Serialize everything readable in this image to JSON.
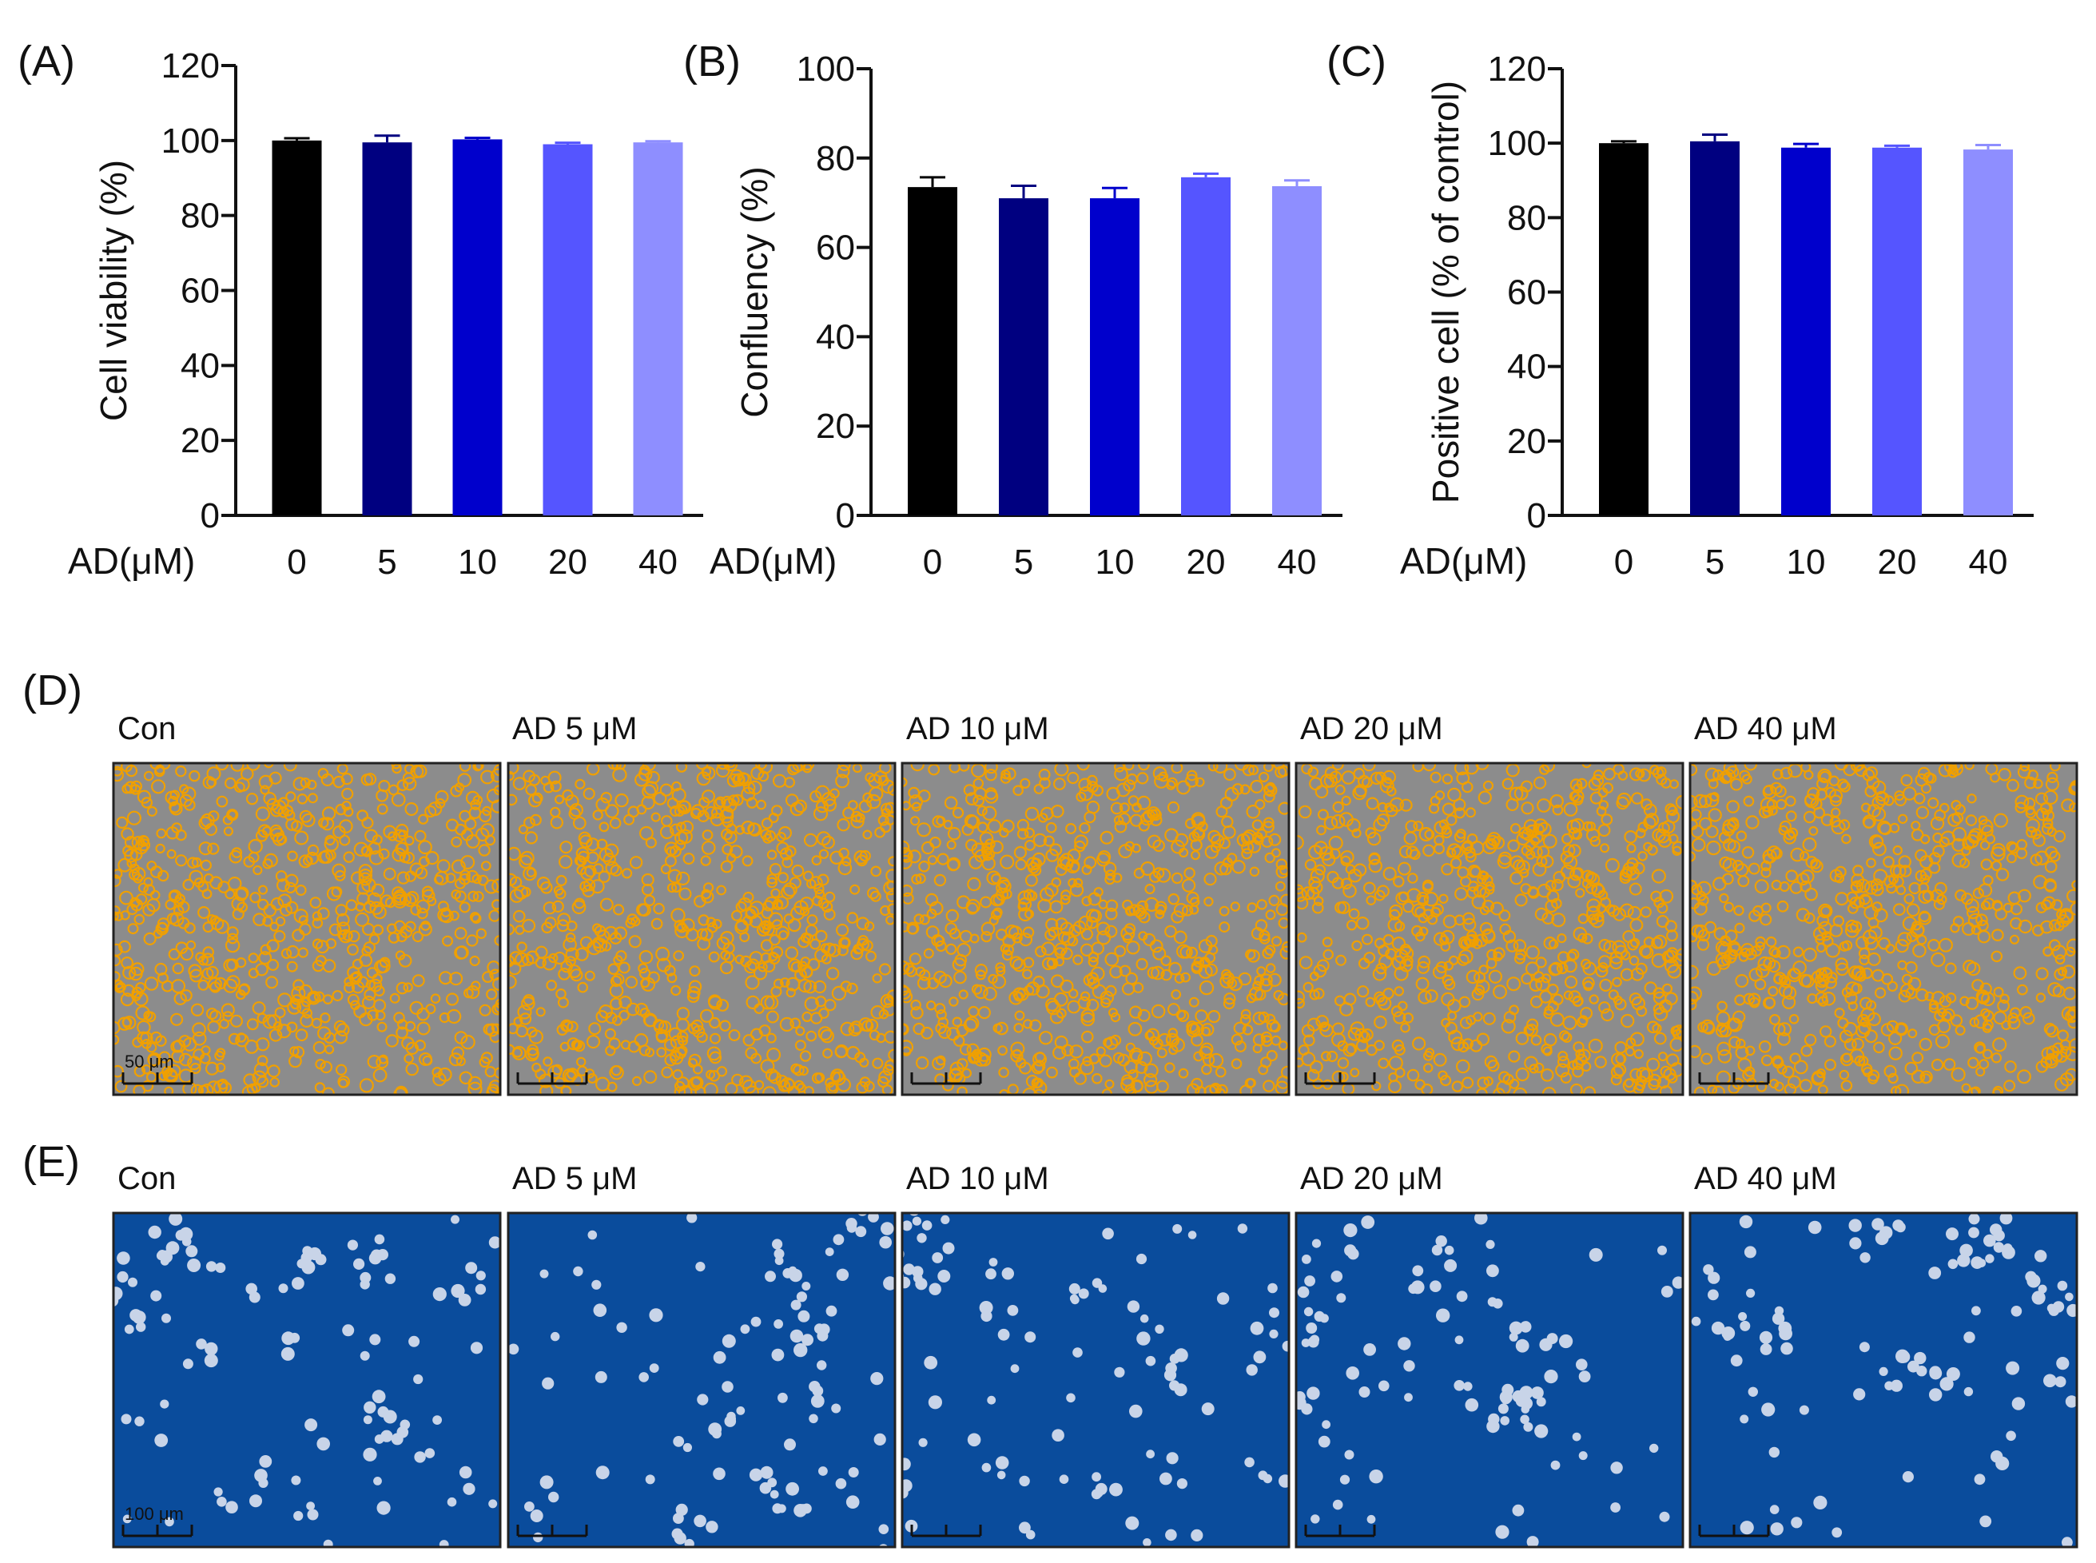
{
  "chart_data": [
    {
      "panel": "(A)",
      "type": "bar",
      "ylabel": "Cell viability (%)",
      "xlabel": "AD(μM)",
      "categories": [
        "0",
        "5",
        "10",
        "20",
        "40"
      ],
      "values": [
        100,
        99.5,
        100.3,
        99,
        99.5
      ],
      "errors": [
        0.6,
        1.8,
        0.4,
        0.4,
        0.3
      ],
      "ylim": [
        0,
        120
      ],
      "yticks": [
        "0",
        "20",
        "40",
        "60",
        "80",
        "100",
        "120"
      ],
      "colors": [
        "#000000",
        "#000080",
        "#0000CC",
        "#5555FF",
        "#8E8EFF"
      ]
    },
    {
      "panel": "(B)",
      "type": "bar",
      "ylabel": "Confluency (%)",
      "xlabel": "AD(μM)",
      "categories": [
        "0",
        "5",
        "10",
        "20",
        "40"
      ],
      "values": [
        73.5,
        71,
        71,
        75.7,
        73.7
      ],
      "errors": [
        2.2,
        2.8,
        2.3,
        0.8,
        1.3
      ],
      "ylim": [
        0,
        100
      ],
      "yticks": [
        "0",
        "20",
        "40",
        "60",
        "80",
        "100"
      ],
      "colors": [
        "#000000",
        "#000080",
        "#0000CC",
        "#5555FF",
        "#8E8EFF"
      ]
    },
    {
      "panel": "(C)",
      "type": "bar",
      "ylabel": "Positive cell (% of control)",
      "xlabel": "AD(μM)",
      "categories": [
        "0",
        "5",
        "10",
        "20",
        "40"
      ],
      "values": [
        100,
        100.5,
        98.8,
        98.8,
        98.3
      ],
      "errors": [
        0.5,
        1.8,
        1.0,
        0.5,
        1.2
      ],
      "ylim": [
        0,
        120
      ],
      "yticks": [
        "0",
        "20",
        "40",
        "60",
        "80",
        "100",
        "120"
      ],
      "colors": [
        "#000000",
        "#000080",
        "#0000CC",
        "#5555FF",
        "#8E8EFF"
      ]
    }
  ],
  "panel_d": {
    "label": "(D)",
    "captions": [
      "Con",
      "AD 5 μM",
      "AD 10 μM",
      "AD 20 μM",
      "AD 40 μM"
    ],
    "scale_bar": "50 μm",
    "background": "#8c8c8c",
    "cell_color": "#f0a000"
  },
  "panel_e": {
    "label": "(E)",
    "captions": [
      "Con",
      "AD 5 μM",
      "AD 10 μM",
      "AD 20 μM",
      "AD 40 μM"
    ],
    "scale_bar": "100 μm",
    "background": "#0a4c9c",
    "cell_color": "#c8d4e8"
  }
}
